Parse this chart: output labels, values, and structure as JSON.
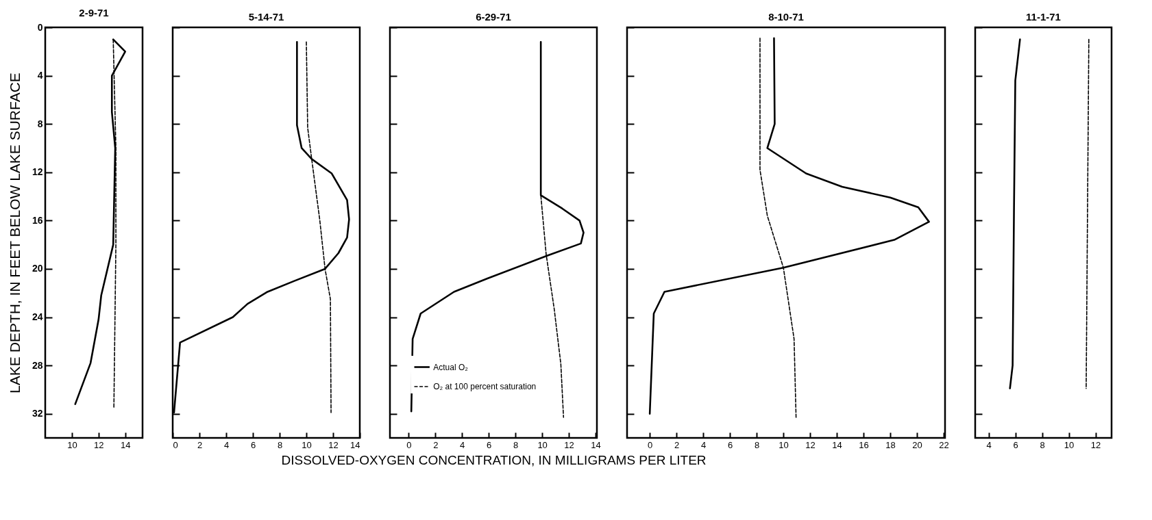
{
  "chart_data": [
    {
      "type": "line",
      "title": "2-9-71",
      "ylabel": "LAKE DEPTH, IN FEET BELOW LAKE SURFACE",
      "orientation": "horizontal",
      "xlim": [
        8,
        15.3
      ],
      "xticks": [
        10,
        12,
        14
      ],
      "ylim": [
        34,
        0
      ],
      "yticks": [
        0,
        4,
        8,
        12,
        16,
        20,
        24,
        28,
        32
      ],
      "grid": false,
      "legend": false,
      "series": [
        {
          "color": "#000000",
          "line_style": "solid",
          "x": [
            1,
            2,
            4,
            7,
            10,
            18,
            22.2,
            24.2,
            27.8,
            31.2
          ],
          "values": [
            13.1,
            14.0,
            13.0,
            13.0,
            13.25,
            13.1,
            12.2,
            12.0,
            11.4,
            10.25
          ]
        },
        {
          "color": "#000000",
          "line_style": "dashed",
          "x": [
            1,
            10,
            18,
            31.5
          ],
          "values": [
            13.1,
            13.3,
            13.3,
            13.15
          ]
        }
      ]
    },
    {
      "type": "line",
      "title": "5-14-71",
      "orientation": "horizontal",
      "xlim": [
        0,
        14
      ],
      "xticks": [
        0,
        2,
        4,
        6,
        8,
        10,
        12,
        14
      ],
      "ylim": [
        34,
        0
      ],
      "yticks": [
        {
          "value": 0,
          "label": null
        },
        {
          "value": 4,
          "label": null
        },
        {
          "value": 8,
          "label": null
        },
        {
          "value": 12,
          "label": null
        },
        {
          "value": 16,
          "label": null
        },
        {
          "value": 20,
          "label": null
        },
        {
          "value": 24,
          "label": null
        },
        {
          "value": 28,
          "label": null
        },
        {
          "value": 32,
          "label": null
        }
      ],
      "tick_labels": "x",
      "grid": false,
      "legend": false,
      "series": [
        {
          "color": "#000000",
          "line_style": "solid",
          "x": [
            1.2,
            8.1,
            10.0,
            10.9,
            12.1,
            14.3,
            15.9,
            17.4,
            18.7,
            20.0,
            21.0,
            21.9,
            22.9,
            24.0,
            26.1,
            31.9
          ],
          "values": [
            9.3,
            9.3,
            9.65,
            10.4,
            11.9,
            13.05,
            13.2,
            13.05,
            12.4,
            11.4,
            9.1,
            7.1,
            5.6,
            4.5,
            0.55,
            0.1
          ]
        },
        {
          "color": "#000000",
          "line_style": "dashed",
          "x": [
            1.2,
            8.3,
            10.9,
            15.9,
            20.0,
            22.5,
            31.9
          ],
          "values": [
            10.0,
            10.1,
            10.4,
            11.0,
            11.4,
            11.8,
            11.85
          ]
        }
      ]
    },
    {
      "type": "line",
      "title": "6-29-71",
      "xlabel": "DISSOLVED-OXYGEN CONCENTRATION, IN MILLIGRAMS PER LITER",
      "orientation": "horizontal",
      "xlim": [
        -1.4,
        14.1
      ],
      "xticks": [
        0,
        2,
        4,
        6,
        8,
        10,
        12,
        14
      ],
      "ylim": [
        34,
        0
      ],
      "yticks": [
        {
          "value": 0,
          "label": null
        },
        {
          "value": 4,
          "label": null
        },
        {
          "value": 8,
          "label": null
        },
        {
          "value": 12,
          "label": null
        },
        {
          "value": 16,
          "label": null
        },
        {
          "value": 20,
          "label": null
        },
        {
          "value": 24,
          "label": null
        },
        {
          "value": 28,
          "label": null
        },
        {
          "value": 32,
          "label": null
        }
      ],
      "tick_labels": "x",
      "grid": false,
      "legend": "bottom",
      "series": [
        {
          "name": "Actual O₂",
          "color": "#000000",
          "line_style": "solid",
          "x": [
            1.2,
            13.9,
            15.0,
            16.0,
            17.0,
            17.9,
            18.9,
            20.8,
            21.9,
            23.7,
            25.8,
            31.8
          ],
          "values": [
            9.9,
            9.9,
            11.5,
            12.8,
            13.1,
            12.9,
            10.4,
            5.9,
            3.4,
            0.9,
            0.3,
            0.2
          ]
        },
        {
          "name": "O₂ at 100 percent saturation",
          "color": "#000000",
          "line_style": "dashed",
          "x": [
            1.2,
            13.9,
            18.8,
            23.3,
            27.9,
            32.3
          ],
          "values": [
            9.9,
            9.9,
            10.3,
            10.9,
            11.4,
            11.6
          ]
        }
      ]
    },
    {
      "type": "line",
      "title": "8-10-71",
      "orientation": "horizontal",
      "xlim": [
        -1.7,
        22.1
      ],
      "xticks": [
        0,
        2,
        4,
        6,
        8,
        10,
        12,
        14,
        16,
        18,
        20,
        22
      ],
      "ylim": [
        34,
        0
      ],
      "yticks": [
        {
          "value": 0,
          "label": null
        },
        {
          "value": 4,
          "label": null
        },
        {
          "value": 8,
          "label": null
        },
        {
          "value": 12,
          "label": null
        },
        {
          "value": 16,
          "label": null
        },
        {
          "value": 20,
          "label": null
        },
        {
          "value": 24,
          "label": null
        },
        {
          "value": 28,
          "label": null
        },
        {
          "value": 32,
          "label": null
        }
      ],
      "tick_labels": "x",
      "grid": false,
      "legend": false,
      "series": [
        {
          "color": "#000000",
          "line_style": "solid",
          "x": [
            0.9,
            8.0,
            10.0,
            12.1,
            13.2,
            14.1,
            14.9,
            16.1,
            17.6,
            19.9,
            21.9,
            23.7,
            32.0
          ],
          "values": [
            9.3,
            9.35,
            8.8,
            11.7,
            14.4,
            18.0,
            20.1,
            20.9,
            18.3,
            10.0,
            1.1,
            0.3,
            0.0
          ]
        },
        {
          "color": "#000000",
          "line_style": "dashed",
          "x": [
            0.9,
            11.8,
            15.6,
            19.9,
            25.8,
            32.3
          ],
          "values": [
            8.25,
            8.25,
            8.8,
            10.0,
            10.8,
            10.95
          ]
        }
      ]
    },
    {
      "type": "line",
      "title": "11-1-71",
      "orientation": "horizontal",
      "xlim": [
        3,
        13.2
      ],
      "xticks": [
        4,
        6,
        8,
        10,
        12
      ],
      "ylim": [
        34,
        0
      ],
      "yticks": [
        {
          "value": 0,
          "label": null
        },
        {
          "value": 4,
          "label": null
        },
        {
          "value": 8,
          "label": null
        },
        {
          "value": 12,
          "label": null
        },
        {
          "value": 16,
          "label": null
        },
        {
          "value": 20,
          "label": null
        },
        {
          "value": 24,
          "label": null
        },
        {
          "value": 28,
          "label": null
        },
        {
          "value": 32,
          "label": null
        }
      ],
      "tick_labels": "x",
      "grid": false,
      "legend": false,
      "series": [
        {
          "color": "#000000",
          "line_style": "solid",
          "x": [
            1.0,
            4.4,
            15.3,
            28.0,
            29.9
          ],
          "values": [
            6.35,
            6.0,
            5.9,
            5.8,
            5.6
          ]
        },
        {
          "color": "#000000",
          "line_style": "dashed",
          "x": [
            1.0,
            29.9
          ],
          "values": [
            11.5,
            11.3
          ]
        }
      ]
    }
  ]
}
